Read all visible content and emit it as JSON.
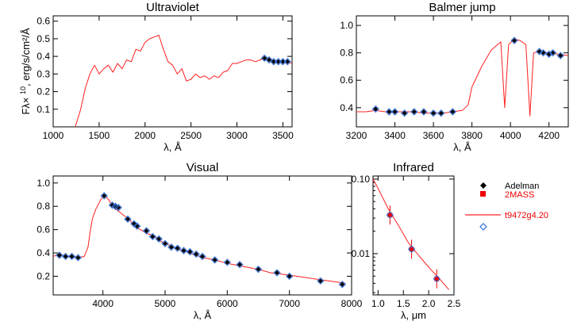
{
  "colors": {
    "model": "#ff2020",
    "adelman": "#000000",
    "twomass": "#ee0000",
    "synthetic": "#2f6fdd",
    "axes": "#000000"
  },
  "legend": {
    "items": [
      {
        "label": "Adelman",
        "marker": "black-diamond"
      },
      {
        "label": "2MASS",
        "marker": "red-square"
      },
      {
        "label": "t9472g4.20",
        "marker": "red-line"
      },
      {
        "label": "",
        "marker": "blue-open-diamond"
      }
    ]
  },
  "chart_data": [
    {
      "id": "uv",
      "type": "line",
      "title": "Ultraviolet",
      "xlabel": "λ, Å",
      "ylabel_main": "Fλ× 10",
      "ylabel_exp": "10",
      "ylabel_unit": ", erg/s/cm²/Å",
      "xlim": [
        1000,
        3600
      ],
      "ylim": [
        0.0,
        0.63
      ],
      "yscale": "linear",
      "xticks": [
        1000,
        1500,
        2000,
        2500,
        3000,
        3500
      ],
      "yticks": [
        0.1,
        0.2,
        0.3,
        0.4,
        0.5,
        0.6
      ],
      "series": [
        {
          "name": "t9472g4.20",
          "style": "line",
          "x": [
            1240,
            1300,
            1350,
            1400,
            1450,
            1500,
            1550,
            1600,
            1650,
            1700,
            1750,
            1800,
            1850,
            1900,
            1950,
            2000,
            2050,
            2100,
            2150,
            2200,
            2250,
            2300,
            2350,
            2400,
            2450,
            2500,
            2550,
            2600,
            2650,
            2700,
            2750,
            2800,
            2850,
            2900,
            2950,
            3000,
            3050,
            3100,
            3150,
            3200,
            3250,
            3300,
            3350,
            3400,
            3450,
            3500,
            3550,
            3600
          ],
          "y": [
            0.0,
            0.1,
            0.22,
            0.3,
            0.35,
            0.3,
            0.33,
            0.35,
            0.31,
            0.36,
            0.33,
            0.38,
            0.37,
            0.44,
            0.43,
            0.48,
            0.5,
            0.51,
            0.52,
            0.44,
            0.37,
            0.35,
            0.3,
            0.33,
            0.26,
            0.27,
            0.3,
            0.28,
            0.29,
            0.27,
            0.29,
            0.28,
            0.31,
            0.32,
            0.36,
            0.36,
            0.37,
            0.38,
            0.38,
            0.37,
            0.38,
            0.39,
            0.38,
            0.37,
            0.37,
            0.37,
            0.37,
            0.36
          ]
        },
        {
          "name": "Adelman",
          "style": "black-diamond",
          "x": [
            3300,
            3350,
            3400,
            3450,
            3500,
            3550
          ],
          "y": [
            0.39,
            0.38,
            0.37,
            0.37,
            0.37,
            0.37
          ]
        },
        {
          "name": "synthetic",
          "style": "blue-open-diamond",
          "x": [
            3300,
            3350,
            3400,
            3450,
            3500,
            3550
          ],
          "y": [
            0.39,
            0.38,
            0.37,
            0.37,
            0.37,
            0.37
          ]
        }
      ]
    },
    {
      "id": "balmer",
      "type": "line",
      "title": "Balmer jump",
      "xlabel": "λ, Å",
      "xlim": [
        3200,
        4300
      ],
      "ylim": [
        0.26,
        1.07
      ],
      "yscale": "linear",
      "xticks": [
        3200,
        3400,
        3600,
        3800,
        4000,
        4200
      ],
      "yticks": [
        0.4,
        0.6,
        0.8,
        1.0
      ],
      "series": [
        {
          "name": "t9472g4.20",
          "style": "line",
          "x": [
            3200,
            3250,
            3300,
            3350,
            3400,
            3450,
            3500,
            3550,
            3600,
            3650,
            3700,
            3750,
            3780,
            3800,
            3850,
            3900,
            3950,
            3970,
            3990,
            4020,
            4050,
            4080,
            4101,
            4120,
            4150,
            4200,
            4250,
            4300
          ],
          "y": [
            0.37,
            0.37,
            0.38,
            0.37,
            0.37,
            0.37,
            0.37,
            0.36,
            0.36,
            0.36,
            0.37,
            0.38,
            0.42,
            0.55,
            0.7,
            0.82,
            0.88,
            0.4,
            0.86,
            0.9,
            0.89,
            0.86,
            0.34,
            0.8,
            0.81,
            0.8,
            0.79,
            0.78
          ]
        },
        {
          "name": "Adelman",
          "style": "black-diamond",
          "x": [
            3300,
            3370,
            3400,
            3450,
            3500,
            3550,
            3600,
            3640,
            3700,
            4020,
            4150,
            4170,
            4200,
            4220,
            4260
          ],
          "y": [
            0.39,
            0.37,
            0.37,
            0.36,
            0.37,
            0.37,
            0.36,
            0.36,
            0.37,
            0.89,
            0.81,
            0.8,
            0.79,
            0.8,
            0.78
          ]
        },
        {
          "name": "synthetic",
          "style": "blue-open-diamond",
          "x": [
            3300,
            3370,
            3400,
            3450,
            3500,
            3550,
            3600,
            3640,
            3700,
            4020,
            4150,
            4170,
            4200,
            4220,
            4260
          ],
          "y": [
            0.39,
            0.37,
            0.37,
            0.36,
            0.37,
            0.37,
            0.36,
            0.36,
            0.37,
            0.89,
            0.81,
            0.8,
            0.79,
            0.8,
            0.78
          ]
        }
      ]
    },
    {
      "id": "visual",
      "type": "line",
      "title": "Visual",
      "xlabel": "λ, Å",
      "xlim": [
        3200,
        8000
      ],
      "ylim": [
        0.04,
        1.06
      ],
      "yscale": "linear",
      "xticks": [
        4000,
        5000,
        6000,
        7000,
        8000
      ],
      "yticks": [
        0.2,
        0.4,
        0.6,
        0.8,
        1.0
      ],
      "series": [
        {
          "name": "t9472g4.20",
          "style": "line",
          "x": [
            3200,
            3300,
            3400,
            3500,
            3600,
            3700,
            3760,
            3800,
            3835,
            3889,
            3970,
            4020,
            4101,
            4150,
            4200,
            4340,
            4400,
            4500,
            4600,
            4700,
            4800,
            4861,
            4900,
            5000,
            5100,
            5200,
            5300,
            5400,
            5500,
            5600,
            5800,
            6000,
            6200,
            6400,
            6563,
            6700,
            7000,
            7500,
            7900
          ],
          "y": [
            0.37,
            0.39,
            0.37,
            0.37,
            0.36,
            0.37,
            0.45,
            0.6,
            0.7,
            0.78,
            0.86,
            0.9,
            0.85,
            0.8,
            0.78,
            0.72,
            0.7,
            0.64,
            0.6,
            0.57,
            0.55,
            0.53,
            0.51,
            0.48,
            0.46,
            0.43,
            0.42,
            0.4,
            0.38,
            0.36,
            0.34,
            0.31,
            0.29,
            0.27,
            0.25,
            0.23,
            0.21,
            0.17,
            0.14
          ]
        },
        {
          "name": "Adelman",
          "style": "black-diamond",
          "x": [
            3300,
            3400,
            3500,
            3600,
            4020,
            4150,
            4200,
            4250,
            4400,
            4500,
            4550,
            4700,
            4800,
            4900,
            5000,
            5100,
            5200,
            5300,
            5400,
            5500,
            5600,
            5800,
            6000,
            6200,
            6500,
            6800,
            7000,
            7500,
            7850
          ],
          "y": [
            0.38,
            0.37,
            0.37,
            0.36,
            0.89,
            0.81,
            0.8,
            0.79,
            0.69,
            0.65,
            0.63,
            0.59,
            0.54,
            0.52,
            0.48,
            0.45,
            0.44,
            0.42,
            0.41,
            0.39,
            0.37,
            0.34,
            0.32,
            0.3,
            0.26,
            0.23,
            0.2,
            0.16,
            0.13
          ]
        },
        {
          "name": "synthetic",
          "style": "blue-open-diamond",
          "x": [
            3300,
            3400,
            3500,
            3600,
            4020,
            4150,
            4200,
            4250,
            4400,
            4500,
            4550,
            4700,
            4800,
            4900,
            5000,
            5100,
            5200,
            5300,
            5400,
            5500,
            5600,
            5800,
            6000,
            6200,
            6500,
            6800,
            7000,
            7500,
            7850
          ],
          "y": [
            0.38,
            0.37,
            0.37,
            0.36,
            0.89,
            0.81,
            0.8,
            0.79,
            0.69,
            0.65,
            0.63,
            0.59,
            0.54,
            0.52,
            0.48,
            0.45,
            0.44,
            0.42,
            0.41,
            0.39,
            0.37,
            0.34,
            0.32,
            0.3,
            0.26,
            0.23,
            0.2,
            0.16,
            0.13
          ]
        }
      ]
    },
    {
      "id": "ir",
      "type": "line",
      "title": "Infrared",
      "xlabel": "λ, μm",
      "xlim": [
        0.9,
        2.5
      ],
      "ylim": [
        0.0028,
        0.11
      ],
      "yscale": "log",
      "xticks": [
        1.0,
        1.5,
        2.0,
        2.5
      ],
      "yticks": [
        0.01,
        0.1
      ],
      "ytick_labels": [
        "0.01",
        "0.10"
      ],
      "series": [
        {
          "name": "t9472g4.20",
          "style": "line",
          "x": [
            0.9,
            1.0,
            1.2,
            1.4,
            1.6,
            1.8,
            2.0,
            2.2,
            2.4
          ],
          "y": [
            0.1,
            0.075,
            0.04,
            0.024,
            0.014,
            0.0095,
            0.0066,
            0.0047,
            0.0033
          ]
        },
        {
          "name": "2MASS",
          "style": "red-square",
          "x": [
            1.235,
            1.662,
            2.159
          ],
          "y": [
            0.033,
            0.0115,
            0.0046
          ]
        },
        {
          "name": "synthetic",
          "style": "blue-open-diamond",
          "x": [
            1.235,
            1.662,
            2.159
          ],
          "y": [
            0.033,
            0.0115,
            0.0046
          ]
        }
      ]
    }
  ]
}
